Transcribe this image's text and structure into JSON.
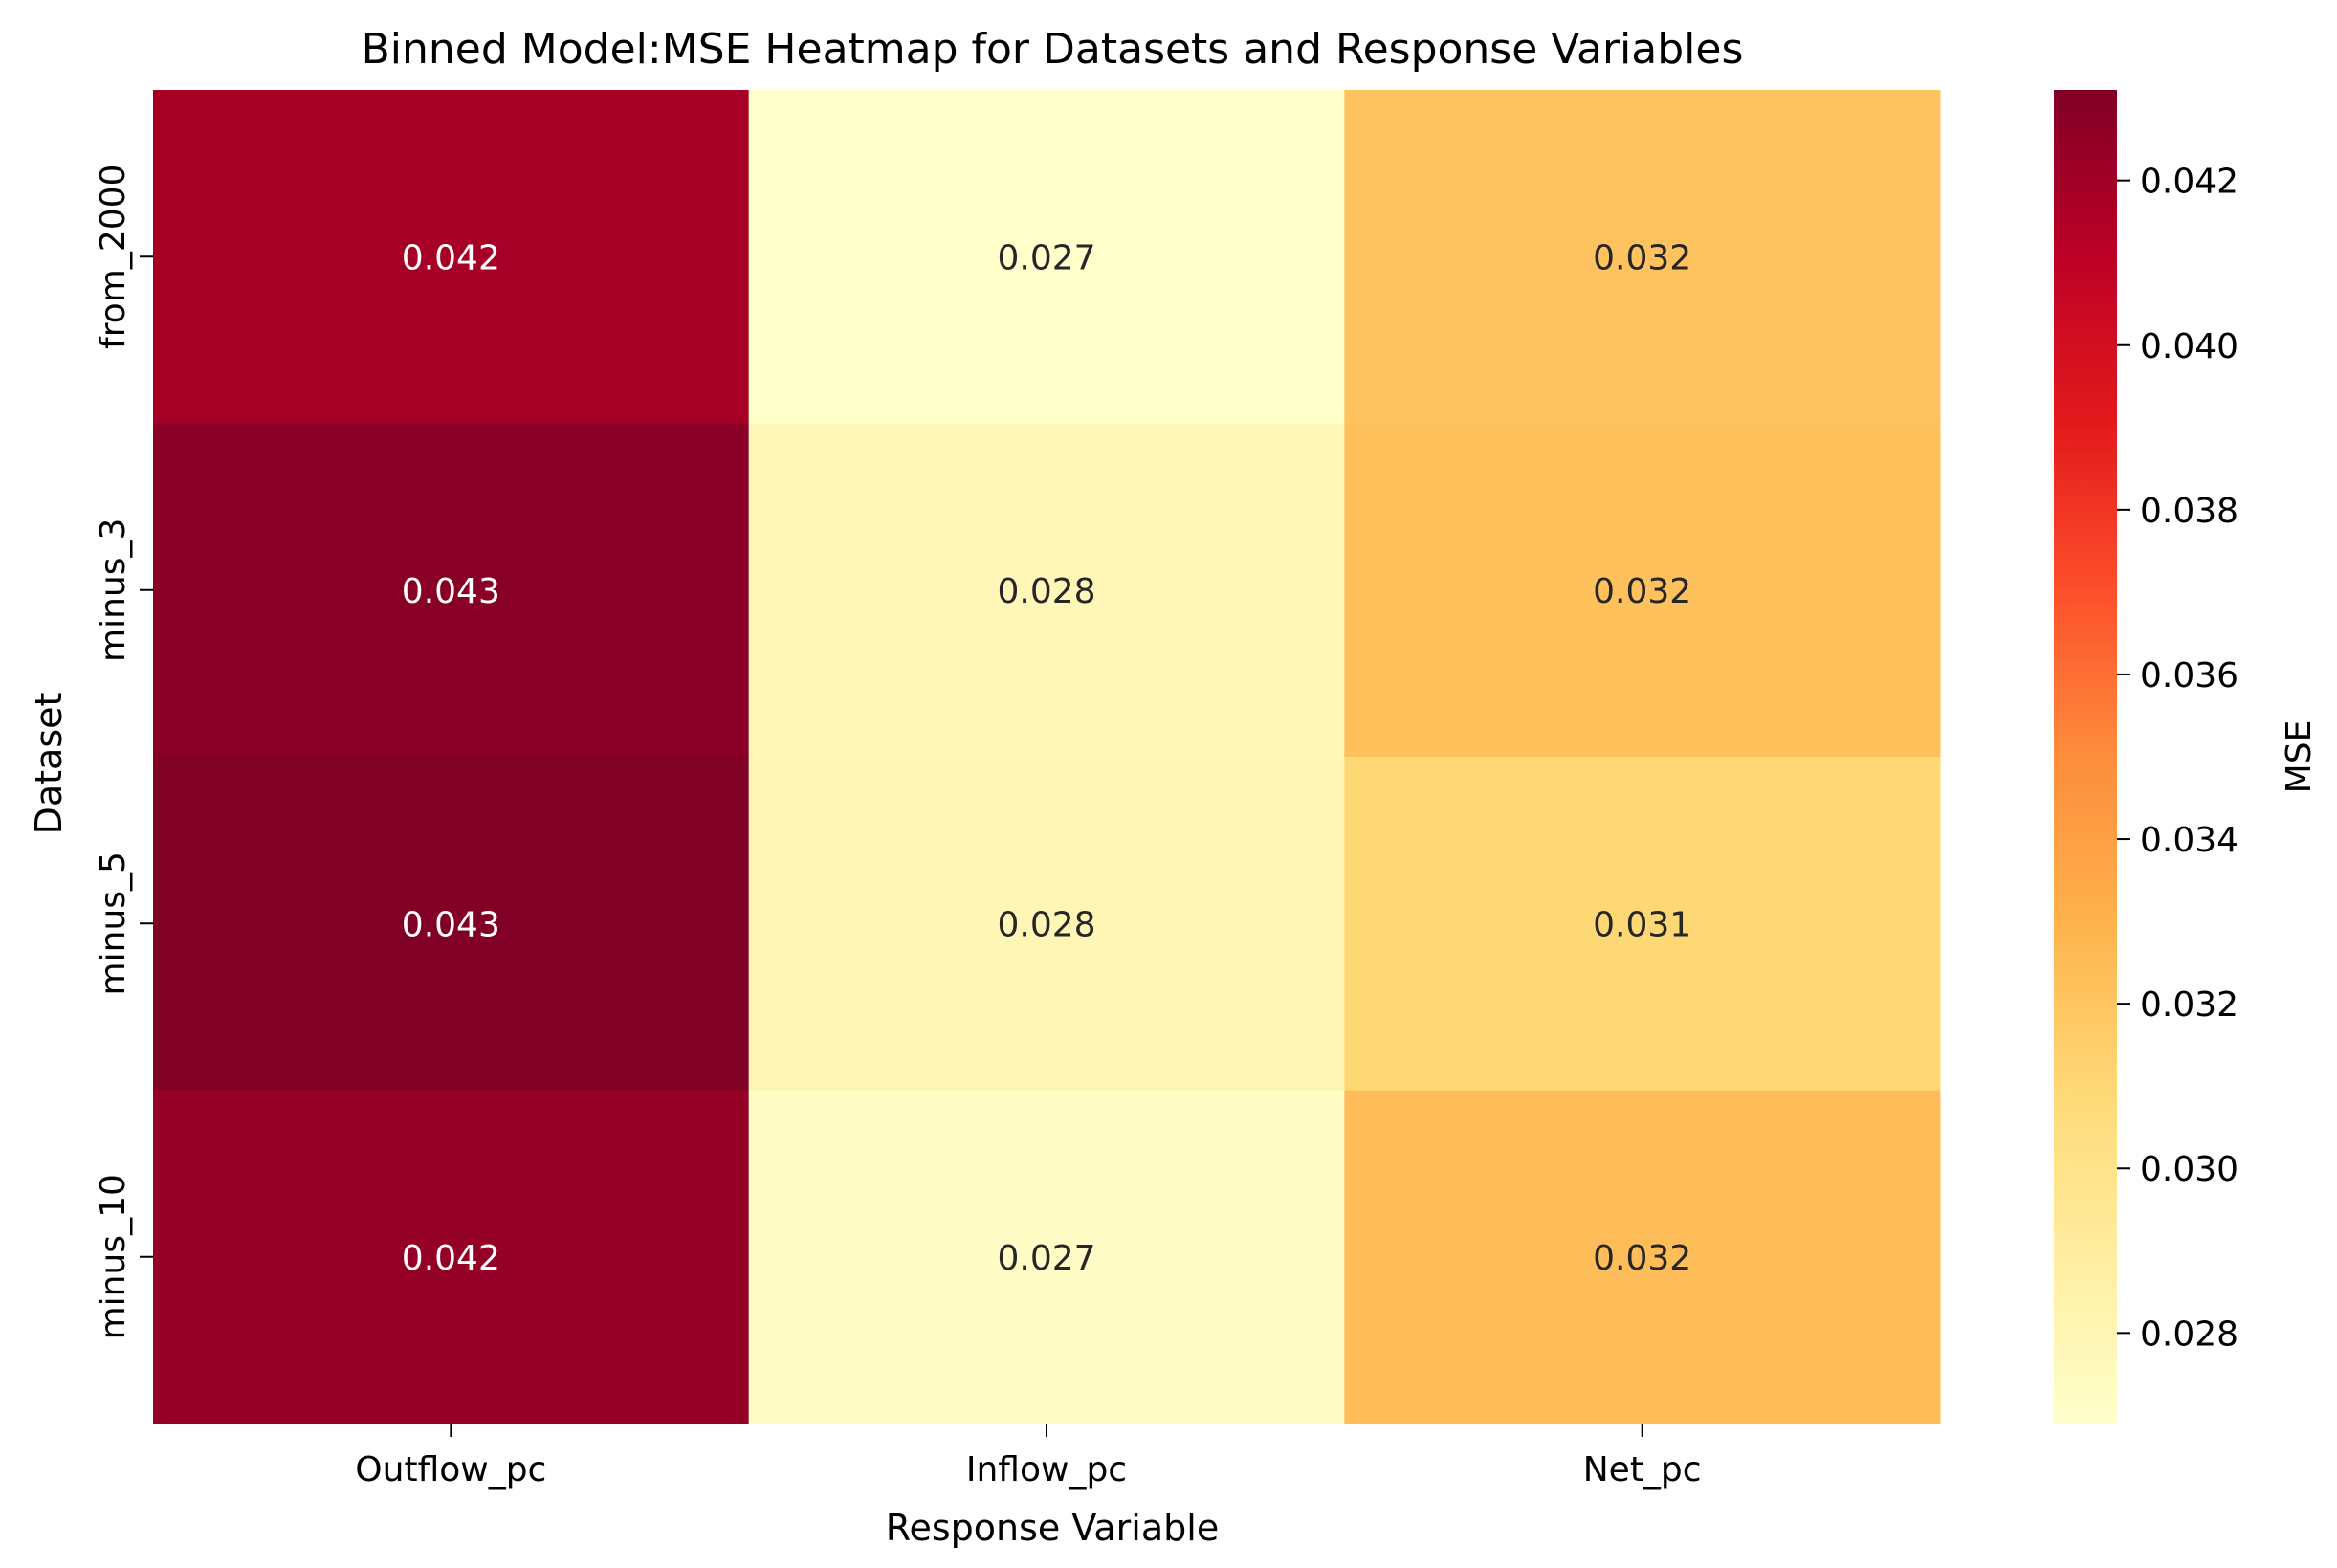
{
  "chart_data": {
    "type": "heatmap",
    "title": "Binned Model:MSE Heatmap for Datasets and Response Variables",
    "xlabel": "Response Variable",
    "ylabel": "Dataset",
    "columns": [
      "Outflow_pc",
      "Inflow_pc",
      "Net_pc"
    ],
    "rows": [
      "from_2000",
      "minus_3",
      "minus_5",
      "minus_10"
    ],
    "values": [
      [
        0.0418,
        0.0269,
        0.0321
      ],
      [
        0.0428,
        0.0278,
        0.0322
      ],
      [
        0.0431,
        0.028,
        0.031
      ],
      [
        0.0424,
        0.0272,
        0.0324
      ]
    ],
    "annotations": [
      [
        "0.042",
        "0.027",
        "0.032"
      ],
      [
        "0.043",
        "0.028",
        "0.032"
      ],
      [
        "0.043",
        "0.028",
        "0.031"
      ],
      [
        "0.042",
        "0.027",
        "0.032"
      ]
    ],
    "colormap": "YlOrRd",
    "colorbar": {
      "label": "MSE",
      "vmin": 0.0269,
      "vmax": 0.0431,
      "ticks": [
        0.028,
        0.03,
        0.032,
        0.034,
        0.036,
        0.038,
        0.04,
        0.042
      ],
      "tick_labels": [
        "0.028",
        "0.030",
        "0.032",
        "0.034",
        "0.036",
        "0.038",
        "0.040",
        "0.042"
      ]
    }
  }
}
